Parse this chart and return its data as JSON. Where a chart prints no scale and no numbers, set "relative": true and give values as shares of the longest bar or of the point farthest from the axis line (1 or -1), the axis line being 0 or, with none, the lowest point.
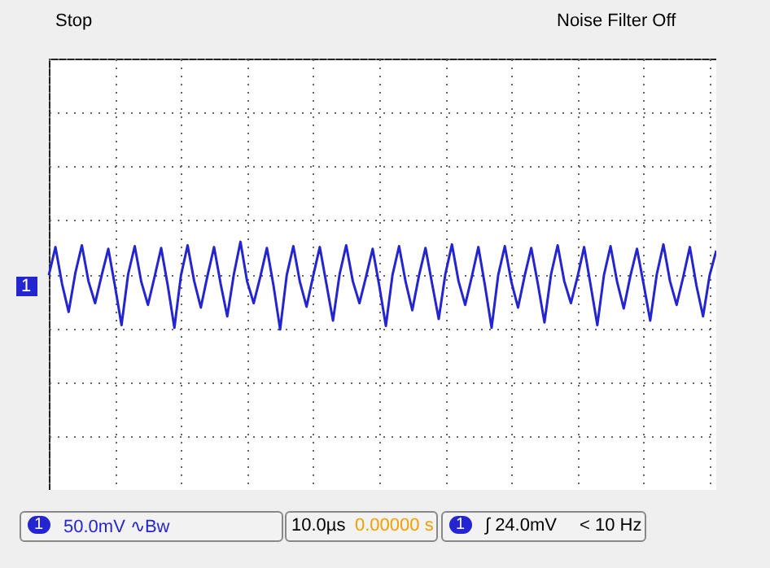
{
  "chart_data": {
    "type": "line",
    "relative": true,
    "grid": true,
    "annotations": [
      "Stop",
      "Noise Filter Off",
      "1",
      "50.0mV ∿Bw",
      "10.0µs",
      "0.00000 s",
      "1",
      "∫ 24.0mV",
      "< 10 Hz"
    ],
    "categories": [
      null,
      null,
      null,
      null,
      null,
      null,
      null,
      null,
      null,
      null,
      null,
      null,
      null,
      null,
      null,
      null,
      null,
      null,
      null,
      null,
      null,
      null,
      null,
      null,
      null,
      null,
      null,
      null,
      null,
      null,
      null,
      null,
      null,
      null,
      null,
      null,
      null,
      null,
      null,
      null,
      null,
      null,
      null,
      null,
      null,
      null,
      null,
      null,
      null,
      null,
      null,
      null,
      null,
      null,
      null,
      null,
      null,
      null,
      null,
      null,
      null,
      null,
      null,
      null,
      null,
      null,
      null,
      null,
      null,
      null,
      null,
      null,
      null,
      null,
      null,
      null,
      null,
      null,
      null,
      null,
      null,
      null,
      null,
      null,
      null,
      null,
      null,
      null,
      null,
      null,
      null,
      null,
      null,
      null,
      null,
      null,
      null,
      null,
      null,
      null,
      null,
      null
    ],
    "series": [
      {
        "name": "1",
        "color": "#2424d0",
        "values": [
          0.62,
          0.94,
          0.52,
          0.2,
          0.64,
          0.96,
          0.55,
          0.3,
          0.62,
          0.92,
          0.5,
          0.05,
          0.63,
          0.95,
          0.54,
          0.28,
          0.6,
          0.93,
          0.5,
          0.02,
          0.62,
          0.96,
          0.55,
          0.25,
          0.61,
          0.94,
          0.52,
          0.15,
          0.63,
          1.0,
          0.55,
          0.3,
          0.6,
          0.93,
          0.5,
          0.0,
          0.62,
          0.95,
          0.54,
          0.26,
          0.61,
          0.94,
          0.52,
          0.1,
          0.63,
          0.96,
          0.55,
          0.3,
          0.6,
          0.92,
          0.5,
          0.04,
          0.62,
          0.95,
          0.54,
          0.22,
          0.61,
          0.93,
          0.52,
          0.12,
          0.63,
          0.97,
          0.55,
          0.28,
          0.6,
          0.94,
          0.5,
          0.02,
          0.62,
          0.95,
          0.54,
          0.25,
          0.61,
          0.93,
          0.52,
          0.08,
          0.63,
          0.96,
          0.55,
          0.3,
          0.6,
          0.94,
          0.5,
          0.05,
          0.62,
          0.95,
          0.54,
          0.24,
          0.61,
          0.92,
          0.52,
          0.1,
          0.63,
          0.97,
          0.55,
          0.28,
          0.6,
          0.94,
          0.5,
          0.15,
          0.62,
          0.9
        ]
      }
    ]
  }
}
